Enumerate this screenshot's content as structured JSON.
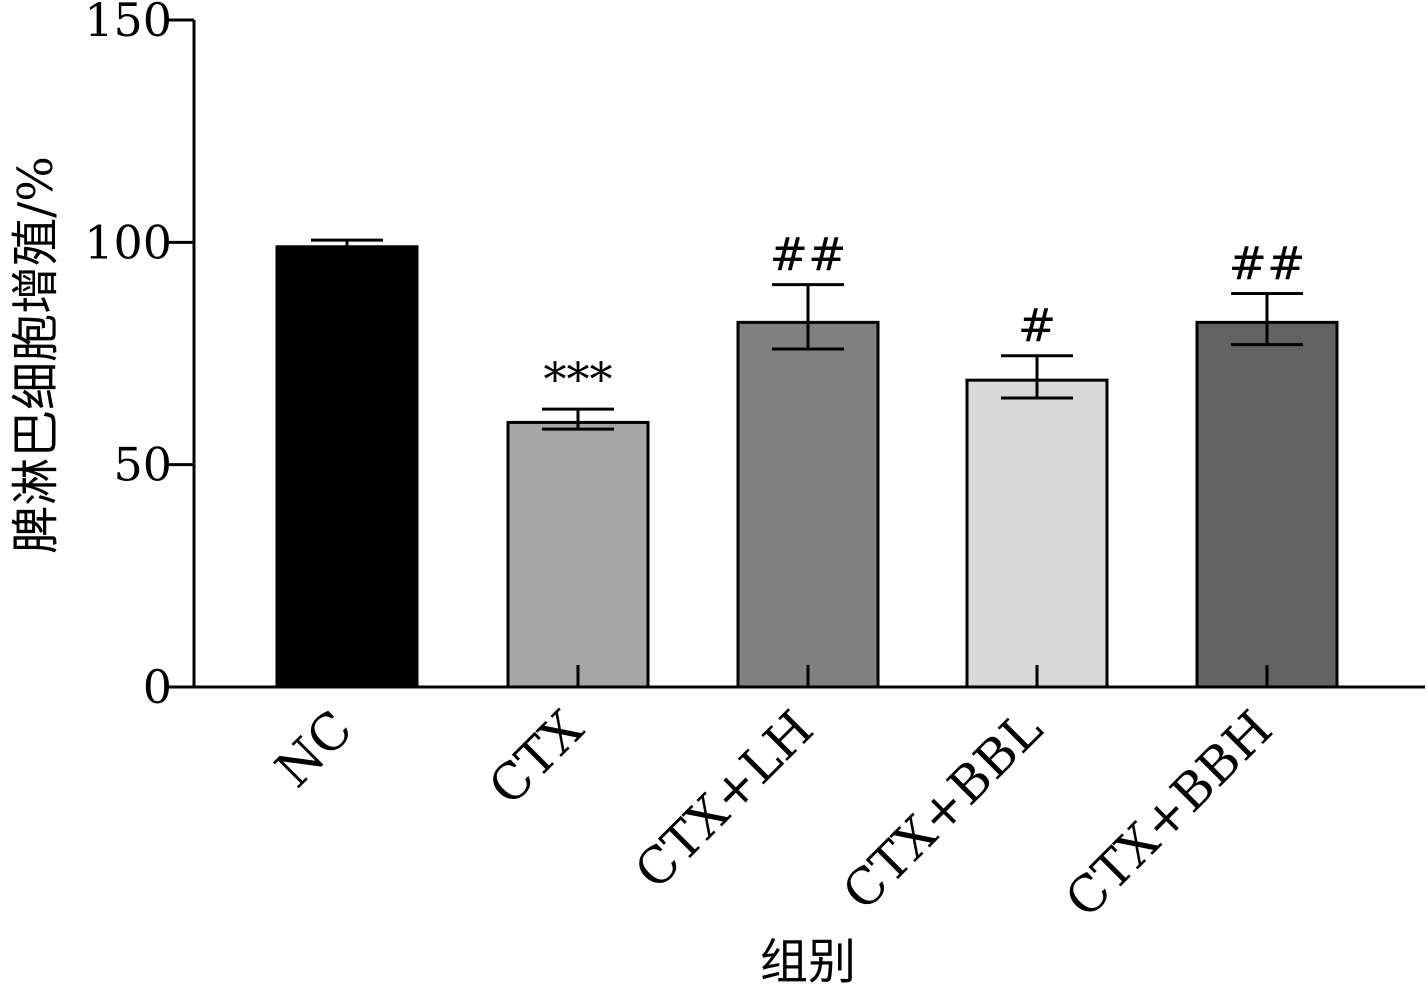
{
  "chart_data": {
    "type": "bar",
    "title": "",
    "xlabel": "组别",
    "ylabel": "脾淋巴细胞增殖/%",
    "ylim": [
      0,
      150
    ],
    "yticks": [
      0,
      50,
      100,
      150
    ],
    "categories": [
      "NC",
      "CTX",
      "CTX+LH",
      "CTX+BBL",
      "CTX+BBH"
    ],
    "values": [
      99,
      59.5,
      82,
      69,
      82
    ],
    "error_upper": [
      1.5,
      3,
      8.5,
      5.5,
      6.5
    ],
    "error_lower": [
      1,
      1.5,
      6,
      4,
      5
    ],
    "significance": [
      "",
      "***",
      "##",
      "#",
      "##"
    ],
    "colors": [
      "#000000",
      "#a6a6a6",
      "#808080",
      "#d9d9d9",
      "#636363"
    ]
  }
}
